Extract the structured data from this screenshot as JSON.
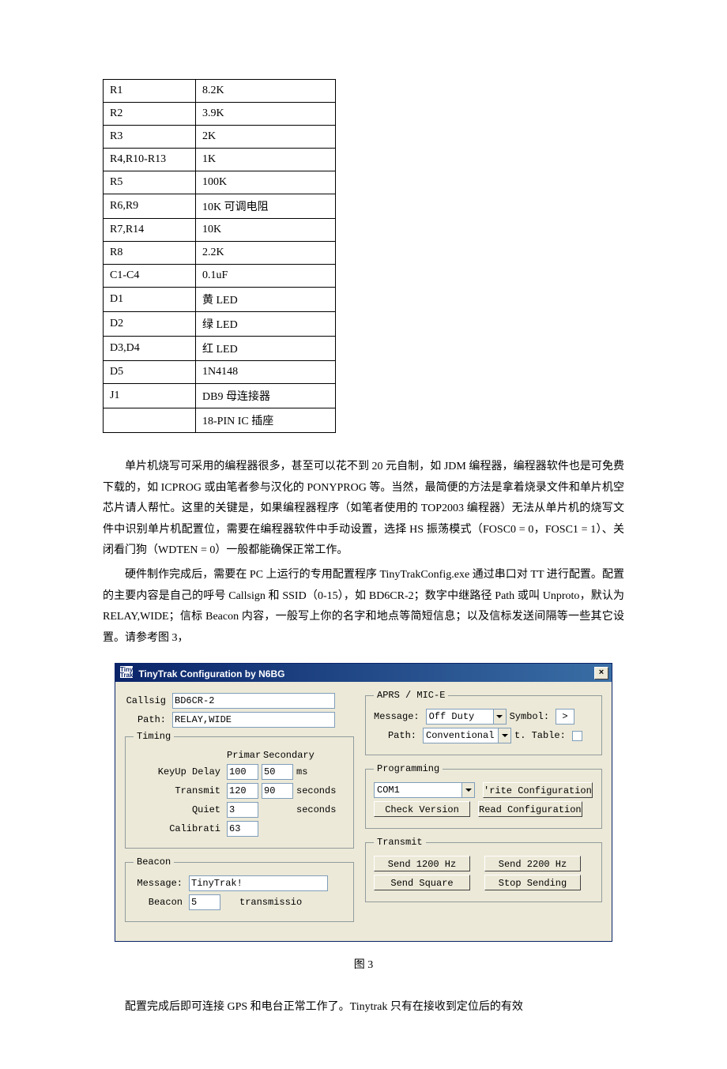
{
  "component_table": {
    "rows": [
      [
        "R1",
        "8.2K"
      ],
      [
        "R2",
        "3.9K"
      ],
      [
        "R3",
        "2K"
      ],
      [
        "R4,R10-R13",
        "1K"
      ],
      [
        "R5",
        "100K"
      ],
      [
        "R6,R9",
        "10K 可调电阻"
      ],
      [
        "R7,R14",
        "10K"
      ],
      [
        "R8",
        "2.2K"
      ],
      [
        "C1-C4",
        "0.1uF"
      ],
      [
        "D1",
        "黄 LED"
      ],
      [
        "D2",
        "绿 LED"
      ],
      [
        "D3,D4",
        "红 LED"
      ],
      [
        "D5",
        "1N4148"
      ],
      [
        "J1",
        "DB9 母连接器"
      ],
      [
        "",
        "18-PIN IC 插座"
      ]
    ]
  },
  "paragraphs": {
    "p1": "单片机烧写可采用的编程器很多，甚至可以花不到 20 元自制，如 JDM 编程器，编程器软件也是可免费下载的，如 ICPROG 或由笔者参与汉化的 PONYPROG 等。当然，最简便的方法是拿着烧录文件和单片机空芯片请人帮忙。这里的关键是，如果编程器程序（如笔者使用的 TOP2003 编程器）无法从单片机的烧写文件中识别单片机配置位，需要在编程器软件中手动设置，选择 HS 振荡模式（FOSC0 = 0，FOSC1 = 1）、关闭看门狗（WDTEN = 0）一般都能确保正常工作。",
    "p2": "硬件制作完成后，需要在 PC 上运行的专用配置程序 TinyTrakConfig.exe 通过串口对 TT 进行配置。配置的主要内容是自己的呼号 Callsign 和 SSID（0-15），如 BD6CR-2；数字中继路径 Path 或叫 Unproto，默认为 RELAY,WIDE；信标 Beacon 内容，一般写上你的名字和地点等简短信息；以及信标发送间隔等一些其它设置。请参考图 3，",
    "p3": "配置完成后即可连接 GPS 和电台正常工作了。Tinytrak 只有在接收到定位后的有效"
  },
  "dialog": {
    "title": "TinyTrak Configuration by N6BG",
    "icon_text": "Tiny\nTrak",
    "close": "×",
    "callsign_label": "Callsig",
    "callsign_value": "BD6CR-2",
    "path_label": "Path:",
    "path_value": "RELAY,WIDE",
    "timing": {
      "legend": "Timing",
      "col_primary": "Primar",
      "col_secondary": "Secondary",
      "keyup_label": "KeyUp Delay",
      "keyup_primary": "100",
      "keyup_secondary": "50",
      "keyup_unit": "ms",
      "transmit_label": "Transmit",
      "transmit_primary": "120",
      "transmit_secondary": "90",
      "transmit_unit": "seconds",
      "quiet_label": "Quiet",
      "quiet_value": "3",
      "quiet_unit": "seconds",
      "calib_label": "Calibrati",
      "calib_value": "63"
    },
    "beacon": {
      "legend": "Beacon",
      "message_label": "Message:",
      "message_value": "TinyTrak!",
      "beacon_label": "Beacon",
      "beacon_value": "5",
      "beacon_unit": "transmissio"
    },
    "aprs": {
      "legend": "APRS / MIC-E",
      "message_label": "Message:",
      "message_value": "Off Duty",
      "symbol_label": "Symbol:",
      "symbol_value": ">",
      "path_label": "Path:",
      "path_value": "Conventional",
      "table_label": "t. Table:"
    },
    "programming": {
      "legend": "Programming",
      "port_value": "COM1",
      "write_config": "'rite Configuration",
      "check_version": "Check Version",
      "read_config": "Read Configuration"
    },
    "transmit": {
      "legend": "Transmit",
      "send_1200": "Send 1200 Hz",
      "send_2200": "Send 2200 Hz",
      "send_square": "Send Square",
      "stop_sending": "Stop Sending"
    }
  },
  "fig_caption": "图 3"
}
